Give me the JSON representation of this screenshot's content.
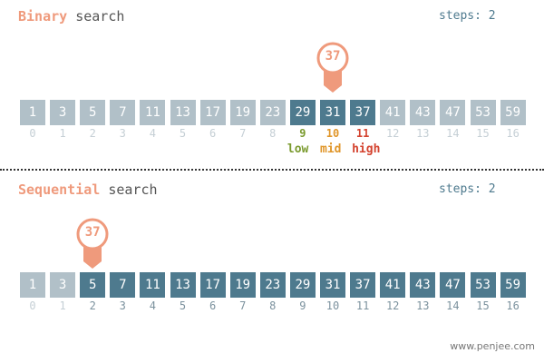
{
  "binary": {
    "title_accent": "Binary",
    "title_rest": " search",
    "steps_label": "steps: 2",
    "target": "37",
    "values": [
      "1",
      "3",
      "5",
      "7",
      "11",
      "13",
      "17",
      "19",
      "23",
      "29",
      "31",
      "37",
      "41",
      "43",
      "47",
      "53",
      "59"
    ],
    "indices": [
      "0",
      "1",
      "2",
      "3",
      "4",
      "5",
      "6",
      "7",
      "8",
      "9",
      "10",
      "11",
      "12",
      "13",
      "14",
      "15",
      "16"
    ],
    "low_index": "9",
    "mid_index": "10",
    "high_index": "11",
    "low_label": "low",
    "mid_label": "mid",
    "high_label": "high",
    "colors": {
      "low": "#7a9a2e",
      "mid": "#e0962a",
      "high": "#d4432f"
    }
  },
  "sequential": {
    "title_accent": "Sequential",
    "title_rest": " search",
    "steps_label": "steps: 2",
    "target": "37",
    "values": [
      "1",
      "3",
      "5",
      "7",
      "11",
      "13",
      "17",
      "19",
      "23",
      "29",
      "31",
      "37",
      "41",
      "43",
      "47",
      "53",
      "59"
    ],
    "indices": [
      "0",
      "1",
      "2",
      "3",
      "4",
      "5",
      "6",
      "7",
      "8",
      "9",
      "10",
      "11",
      "12",
      "13",
      "14",
      "15",
      "16"
    ],
    "current_index": "2"
  },
  "footer": "www.penjee.com",
  "colors": {
    "accent": "#ef9a7c",
    "cell_dark": "#4e7a8e",
    "cell_light": "#b1c0c8"
  }
}
